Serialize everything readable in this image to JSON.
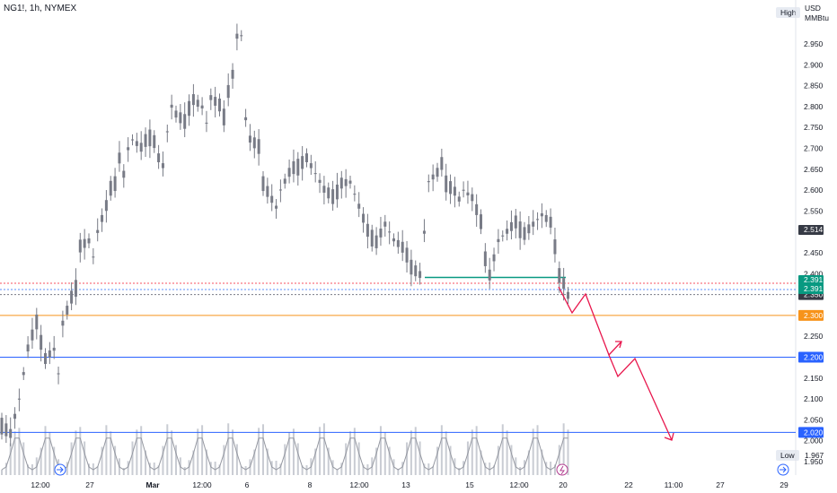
{
  "header": {
    "symbol": "NG1!, 1h, NYMEX"
  },
  "axis": {
    "currency": "USD",
    "unit": "MMBtu",
    "high_label": "High",
    "low_label": "Low",
    "low_value": "1.967"
  },
  "colors": {
    "candle": "#787b86",
    "volume": "#c9ccd3",
    "orange": "#f7931a",
    "blue": "#2962ff",
    "green": "#089981",
    "red_path": "#e8174d",
    "dark_badge": "#363a45",
    "dotted_red": "#f7525f",
    "dotted_blue": "#5b8ff9"
  },
  "chart_data": {
    "type": "candlestick",
    "y_ticks": [
      "2.950",
      "2.900",
      "2.850",
      "2.800",
      "2.750",
      "2.700",
      "2.650",
      "2.600",
      "2.550",
      "2.500",
      "2.450",
      "2.400",
      "2.350",
      "2.300",
      "2.250",
      "2.200",
      "2.150",
      "2.100",
      "2.050",
      "2.000",
      "1.950"
    ],
    "x_ticks": [
      "12:00",
      "27",
      "Mar",
      "12:00",
      "6",
      "8",
      "12:00",
      "13",
      "15",
      "12:00",
      "20",
      "22",
      "11:00",
      "27",
      "29"
    ],
    "ylim": [
      1.95,
      2.98
    ],
    "price_path": [
      [
        0,
        2.04
      ],
      [
        2,
        2.02
      ],
      [
        4,
        2.1
      ],
      [
        6,
        2.22
      ],
      [
        8,
        2.28
      ],
      [
        10,
        2.2
      ],
      [
        12,
        2.22
      ],
      [
        13,
        2.16
      ],
      [
        14,
        2.28
      ],
      [
        16,
        2.34
      ],
      [
        17,
        2.37
      ],
      [
        18,
        2.47
      ],
      [
        20,
        2.48
      ],
      [
        21,
        2.44
      ],
      [
        22,
        2.5
      ],
      [
        24,
        2.56
      ],
      [
        25,
        2.6
      ],
      [
        26,
        2.62
      ],
      [
        27,
        2.68
      ],
      [
        28,
        2.64
      ],
      [
        29,
        2.7
      ],
      [
        30,
        2.72
      ],
      [
        32,
        2.7
      ],
      [
        34,
        2.73
      ],
      [
        35,
        2.72
      ],
      [
        36,
        2.68
      ],
      [
        37,
        2.66
      ],
      [
        38,
        2.74
      ],
      [
        39,
        2.8
      ],
      [
        40,
        2.78
      ],
      [
        42,
        2.76
      ],
      [
        43,
        2.8
      ],
      [
        44,
        2.82
      ],
      [
        46,
        2.8
      ],
      [
        47,
        2.76
      ],
      [
        48,
        2.82
      ],
      [
        50,
        2.8
      ],
      [
        51,
        2.78
      ],
      [
        52,
        2.84
      ],
      [
        53,
        2.88
      ],
      [
        54,
        2.97
      ],
      [
        55,
        2.97
      ],
      [
        56,
        2.77
      ],
      [
        57,
        2.72
      ],
      [
        59,
        2.7
      ],
      [
        60,
        2.62
      ],
      [
        62,
        2.58
      ],
      [
        63,
        2.56
      ],
      [
        64,
        2.6
      ],
      [
        65,
        2.62
      ],
      [
        66,
        2.64
      ],
      [
        68,
        2.66
      ],
      [
        70,
        2.68
      ],
      [
        71,
        2.66
      ],
      [
        72,
        2.64
      ],
      [
        74,
        2.6
      ],
      [
        76,
        2.58
      ],
      [
        78,
        2.62
      ],
      [
        80,
        2.62
      ],
      [
        82,
        2.56
      ],
      [
        84,
        2.5
      ],
      [
        86,
        2.48
      ],
      [
        88,
        2.52
      ],
      [
        90,
        2.48
      ],
      [
        92,
        2.46
      ],
      [
        93,
        2.44
      ],
      [
        94,
        2.42
      ],
      [
        96,
        2.4
      ],
      [
        97,
        2.5
      ],
      [
        98,
        2.62
      ],
      [
        100,
        2.64
      ],
      [
        101,
        2.66
      ],
      [
        102,
        2.62
      ],
      [
        104,
        2.6
      ],
      [
        105,
        2.58
      ],
      [
        106,
        2.6
      ],
      [
        108,
        2.58
      ],
      [
        110,
        2.52
      ],
      [
        111,
        2.44
      ],
      [
        112,
        2.4
      ],
      [
        114,
        2.48
      ],
      [
        116,
        2.5
      ],
      [
        118,
        2.52
      ],
      [
        120,
        2.5
      ],
      [
        122,
        2.52
      ],
      [
        124,
        2.54
      ],
      [
        126,
        2.52
      ],
      [
        127,
        2.46
      ],
      [
        128,
        2.4
      ],
      [
        129,
        2.38
      ],
      [
        130,
        2.35
      ]
    ],
    "horizontal_levels": [
      {
        "value": 2.3,
        "label": "2.300",
        "color": "orange",
        "style": "solid"
      },
      {
        "value": 2.2,
        "label": "2.200",
        "color": "blue",
        "style": "solid"
      },
      {
        "value": 2.02,
        "label": "2.020",
        "color": "blue",
        "style": "solid"
      },
      {
        "value": 2.391,
        "label": "2.391",
        "color": "green",
        "style": "segment"
      },
      {
        "value": 2.377,
        "label": "",
        "color": "dotted_red",
        "style": "dotted"
      },
      {
        "value": 2.362,
        "label": "",
        "color": "dotted_blue",
        "style": "dotted"
      },
      {
        "value": 2.35,
        "label": "2.350",
        "color": "dark",
        "style": "dotted"
      }
    ],
    "price_badges": [
      {
        "value": 2.514,
        "label": "2.514",
        "color": "dark_badge"
      },
      {
        "value": 2.391,
        "label": "2.391",
        "color": "green"
      },
      {
        "value": 2.391,
        "label": "2.391",
        "color": "green"
      },
      {
        "value": 2.35,
        "label": "2.350",
        "color": "dark_badge"
      }
    ],
    "projection_path": [
      [
        130,
        2.35
      ],
      [
        132,
        2.3
      ],
      [
        134,
        2.35
      ],
      [
        138,
        2.2
      ],
      [
        142,
        2.24
      ],
      [
        139,
        2.2
      ],
      [
        140,
        2.15
      ],
      [
        145,
        2.2
      ],
      [
        150,
        2.0
      ]
    ],
    "volume_profile": "periodic peaks per trading day",
    "grid": false,
    "legend": "none"
  }
}
